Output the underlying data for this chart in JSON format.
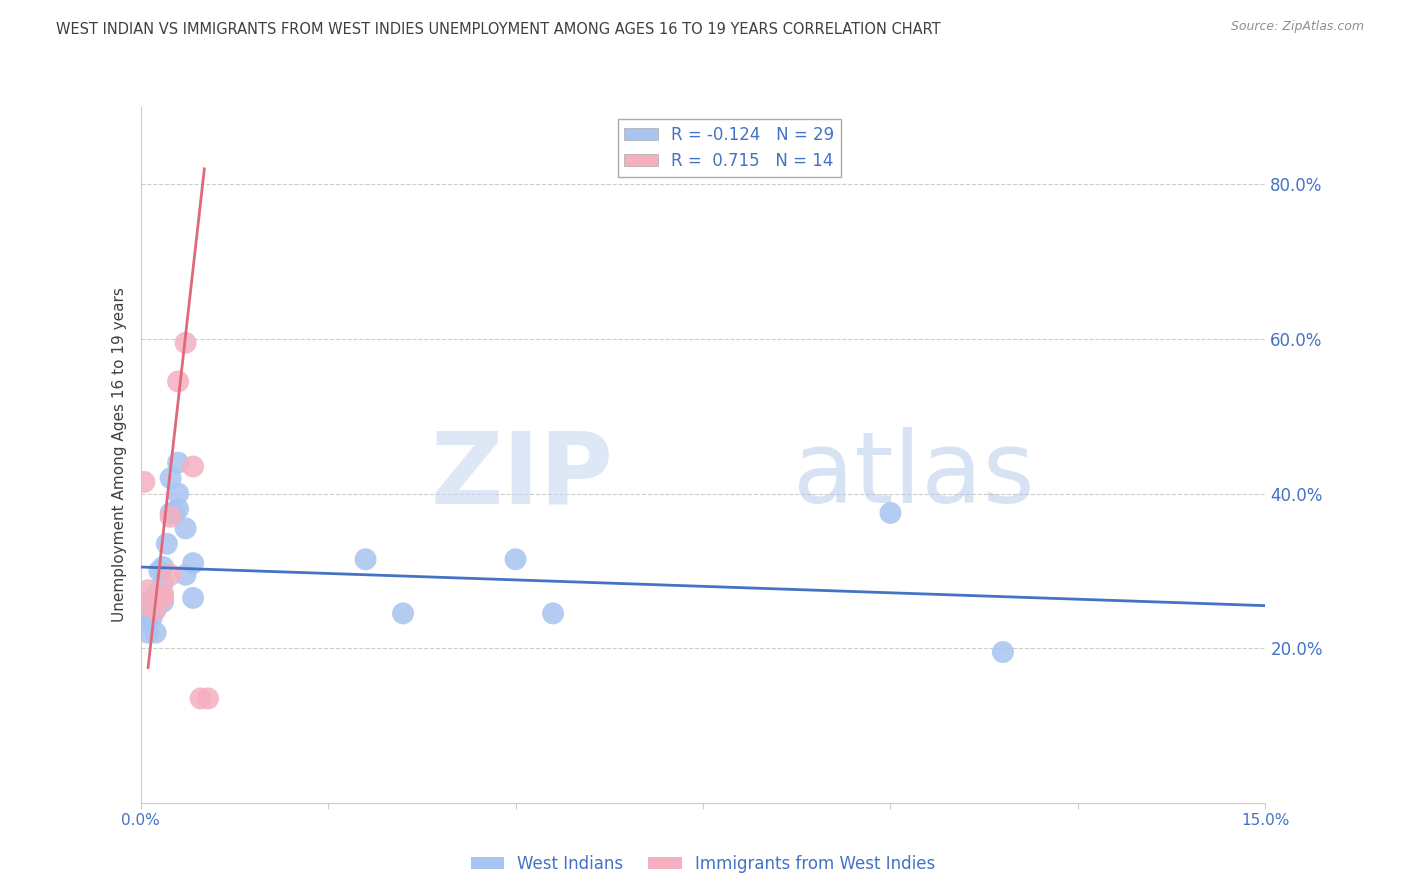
{
  "title": "WEST INDIAN VS IMMIGRANTS FROM WEST INDIES UNEMPLOYMENT AMONG AGES 16 TO 19 YEARS CORRELATION CHART",
  "source": "Source: ZipAtlas.com",
  "ylabel": "Unemployment Among Ages 16 to 19 years",
  "xlim": [
    0.0,
    0.15
  ],
  "ylim": [
    0.0,
    0.9
  ],
  "right_yticks": [
    0.2,
    0.4,
    0.6,
    0.8
  ],
  "right_yticklabels": [
    "20.0%",
    "40.0%",
    "60.0%",
    "80.0%"
  ],
  "xticks": [
    0.0,
    0.025,
    0.05,
    0.075,
    0.1,
    0.125,
    0.15
  ],
  "xticklabels": [
    "0.0%",
    "",
    "",
    "",
    "",
    "",
    "15.0%"
  ],
  "watermark_zip": "ZIP",
  "watermark_atlas": "atlas",
  "legend_r1": "R = -0.124",
  "legend_n1": "N = 29",
  "legend_r2": "R =  0.715",
  "legend_n2": "N = 14",
  "blue_color": "#a8c4f0",
  "pink_color": "#f5b0c0",
  "blue_line_color": "#4472c4",
  "pink_line_color": "#e06878",
  "title_color": "#404040",
  "source_color": "#909090",
  "axis_color": "#4472c4",
  "grid_color": "#cccccc",
  "west_indians_x": [
    0.0005,
    0.001,
    0.001,
    0.001,
    0.0015,
    0.002,
    0.002,
    0.002,
    0.0025,
    0.003,
    0.003,
    0.003,
    0.0035,
    0.004,
    0.004,
    0.0045,
    0.005,
    0.005,
    0.005,
    0.006,
    0.006,
    0.007,
    0.007,
    0.03,
    0.035,
    0.05,
    0.055,
    0.1,
    0.115
  ],
  "west_indians_y": [
    0.245,
    0.22,
    0.235,
    0.26,
    0.24,
    0.22,
    0.25,
    0.27,
    0.3,
    0.26,
    0.285,
    0.305,
    0.335,
    0.375,
    0.42,
    0.375,
    0.38,
    0.4,
    0.44,
    0.355,
    0.295,
    0.31,
    0.265,
    0.315,
    0.245,
    0.315,
    0.245,
    0.375,
    0.195
  ],
  "immigrants_x": [
    0.0005,
    0.001,
    0.001,
    0.002,
    0.002,
    0.003,
    0.003,
    0.004,
    0.004,
    0.005,
    0.006,
    0.007,
    0.008,
    0.009
  ],
  "immigrants_y": [
    0.415,
    0.255,
    0.275,
    0.25,
    0.265,
    0.27,
    0.265,
    0.295,
    0.37,
    0.545,
    0.595,
    0.435,
    0.135,
    0.135
  ],
  "blue_trend_x": [
    0.0,
    0.15
  ],
  "blue_trend_y": [
    0.305,
    0.255
  ],
  "pink_trend_x": [
    0.001,
    0.0085
  ],
  "pink_trend_y": [
    0.175,
    0.82
  ]
}
